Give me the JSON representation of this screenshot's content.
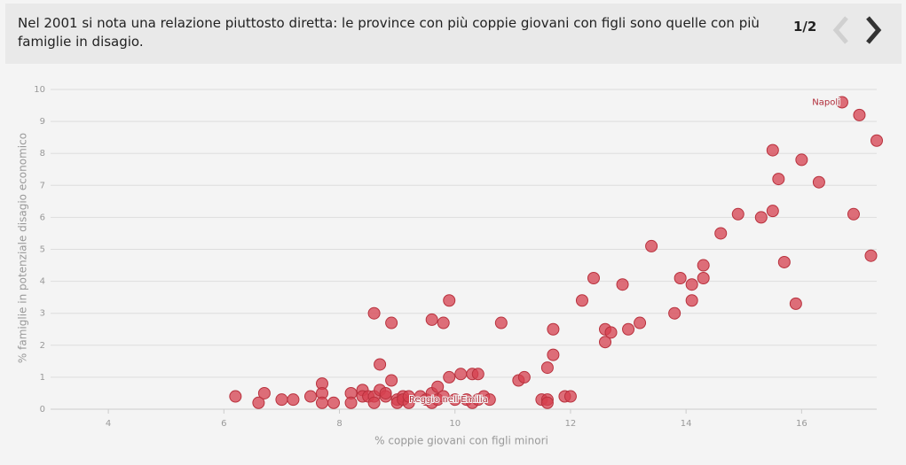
{
  "header": {
    "text": "Nel 2001 si nota una relazione piuttosto diretta: le province con più coppie giovani con figli sono quelle con più famiglie in disagio.",
    "pager": "1/2"
  },
  "chart_data": {
    "type": "scatter",
    "x_label": "% coppie giovani con figli minori",
    "y_label": "% famiglie in potenziale disagio economico",
    "color": "#d6404f",
    "grid": true,
    "xlim": [
      3,
      17.3
    ],
    "xticks": [
      4,
      6,
      8,
      10,
      12,
      14,
      16
    ],
    "ylim": [
      0,
      10
    ],
    "yticks": [
      0,
      1,
      2,
      3,
      4,
      5,
      6,
      7,
      8,
      9,
      10
    ],
    "x": [
      6.2,
      6.6,
      6.7,
      7.0,
      7.2,
      7.5,
      7.7,
      7.7,
      7.7,
      7.9,
      8.2,
      8.2,
      8.4,
      8.4,
      8.5,
      8.6,
      8.6,
      8.6,
      8.7,
      8.7,
      8.8,
      8.8,
      8.9,
      8.9,
      9.0,
      9.0,
      9.1,
      9.1,
      9.2,
      9.2,
      9.4,
      9.5,
      9.6,
      9.6,
      9.6,
      9.7,
      9.7,
      9.8,
      9.8,
      9.9,
      9.9,
      10.0,
      10.1,
      10.2,
      10.3,
      10.3,
      10.4,
      10.4,
      10.5,
      10.6,
      10.8,
      11.1,
      11.2,
      11.5,
      11.6,
      11.6,
      11.6,
      11.7,
      11.7,
      11.9,
      12.0,
      12.2,
      12.4,
      12.6,
      12.6,
      12.7,
      12.9,
      13.0,
      13.2,
      13.4,
      13.8,
      13.9,
      14.1,
      14.1,
      14.3,
      14.3,
      14.6,
      14.9,
      15.3,
      15.5,
      15.5,
      15.6,
      15.7,
      15.9,
      16.0,
      16.3,
      16.7,
      16.9,
      17.0,
      17.2,
      17.3
    ],
    "y": [
      0.4,
      0.2,
      0.5,
      0.3,
      0.3,
      0.4,
      0.8,
      0.5,
      0.2,
      0.2,
      0.5,
      0.2,
      0.6,
      0.4,
      0.4,
      0.4,
      0.2,
      3.0,
      1.4,
      0.6,
      0.4,
      0.5,
      0.9,
      2.7,
      0.3,
      0.2,
      0.4,
      0.3,
      0.2,
      0.4,
      0.4,
      0.3,
      0.2,
      0.5,
      2.8,
      0.7,
      0.3,
      0.4,
      2.7,
      3.4,
      1.0,
      0.3,
      1.1,
      0.3,
      1.1,
      0.2,
      1.1,
      0.3,
      0.4,
      0.3,
      2.7,
      0.9,
      1.0,
      0.3,
      0.3,
      0.2,
      1.3,
      1.7,
      2.5,
      0.4,
      0.4,
      3.4,
      4.1,
      2.5,
      2.1,
      2.4,
      3.9,
      2.5,
      2.7,
      5.1,
      3.0,
      4.1,
      3.9,
      3.4,
      4.5,
      4.1,
      5.5,
      6.1,
      6.0,
      6.2,
      8.1,
      7.2,
      4.6,
      3.3,
      7.8,
      7.1,
      9.6,
      6.1,
      9.2,
      4.8,
      8.4
    ],
    "point_labels": [
      null,
      null,
      null,
      null,
      null,
      null,
      null,
      null,
      null,
      null,
      null,
      null,
      null,
      null,
      null,
      null,
      null,
      null,
      null,
      null,
      null,
      null,
      null,
      null,
      null,
      null,
      null,
      null,
      null,
      null,
      null,
      null,
      null,
      null,
      null,
      null,
      null,
      null,
      null,
      null,
      null,
      null,
      null,
      null,
      null,
      null,
      null,
      null,
      null,
      "Reggio nell'Emilia",
      null,
      null,
      null,
      null,
      null,
      null,
      null,
      null,
      null,
      null,
      null,
      null,
      null,
      null,
      null,
      null,
      null,
      null,
      null,
      null,
      null,
      null,
      null,
      null,
      null,
      null,
      null,
      null,
      null,
      null,
      null,
      null,
      null,
      null,
      null,
      null,
      "Napoli",
      null,
      null,
      null,
      null
    ]
  }
}
